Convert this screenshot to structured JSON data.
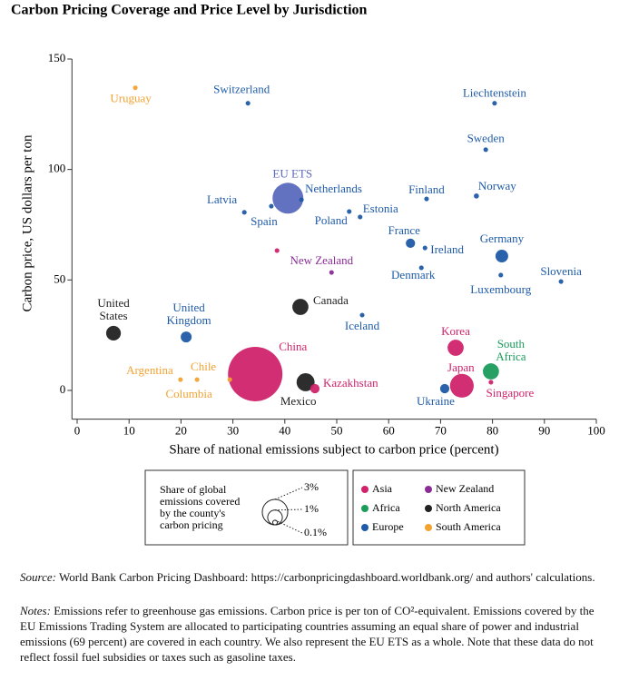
{
  "chart_data": {
    "type": "scatter",
    "title": "Carbon Pricing Coverage and Price Level by Jurisdiction",
    "x_label": "Share of national emissions subject to carbon price (percent)",
    "y_label": "Carbon price, US dollars per ton",
    "xlim": [
      -1,
      100
    ],
    "ylim": [
      -13,
      150
    ],
    "xticks": [
      0,
      10,
      20,
      30,
      40,
      50,
      60,
      70,
      80,
      90,
      100
    ],
    "yticks": [
      0,
      50,
      100,
      150
    ],
    "grid": false,
    "size_legend": {
      "title": [
        "Share of global",
        "emissions covered",
        "by the county's",
        "carbon pricing"
      ],
      "values": [
        {
          "value": 3,
          "label": "3%"
        },
        {
          "value": 1,
          "label": "1%"
        },
        {
          "value": 0.1,
          "label": "0.1%"
        }
      ]
    },
    "series": [
      {
        "name": "Asia",
        "color": "#d0236b",
        "x": [
          34.3,
          72.9,
          74.1,
          45.8,
          79.7,
          38.5
        ],
        "values": [
          7.4,
          19.3,
          2.1,
          0.8,
          3.7,
          63.3
        ],
        "sizes": [
          13.7,
          1.2,
          2.6,
          0.4,
          0.1,
          0.1
        ],
        "labels": [
          "China",
          "Korea",
          "Japan",
          "Kazakhstan",
          "Singapore",
          null
        ]
      },
      {
        "name": "New Zealand",
        "color": "#8a2c96",
        "x": [
          49
        ],
        "values": [
          53.4
        ],
        "sizes": [
          0.1
        ],
        "labels": [
          "New Zealand"
        ]
      },
      {
        "name": "Africa",
        "color": "#1b9c5b",
        "x": [
          79.7
        ],
        "values": [
          8.6
        ],
        "sizes": [
          1.2
        ],
        "labels": [
          [
            "South",
            "Africa"
          ]
        ]
      },
      {
        "name": "North America",
        "color": "#222222",
        "x": [
          7,
          43,
          44
        ],
        "values": [
          25.9,
          37.8,
          3.7
        ],
        "sizes": [
          1.0,
          1.2,
          1.5
        ],
        "labels": [
          [
            "United",
            "States"
          ],
          "Canada",
          "Mexico"
        ]
      },
      {
        "name": "Europe",
        "color": "#1f5ba8",
        "x": [
          32.9,
          80.4,
          78.7,
          32.2,
          37.4,
          43.2,
          52.4,
          54.5,
          67.3,
          76.9,
          64.2,
          67,
          81.8,
          66.3,
          81.6,
          93.2,
          54.9,
          21,
          70.8
        ],
        "values": [
          130,
          130,
          109,
          80.6,
          83.4,
          86.3,
          81,
          78.5,
          86.7,
          88,
          66.6,
          64.5,
          60.8,
          55.5,
          52.2,
          49.3,
          34.1,
          24.2,
          0.8
        ],
        "sizes": [
          0.1,
          0.1,
          0.1,
          0.1,
          0.1,
          0.1,
          0.1,
          0.1,
          0.1,
          0.12,
          0.4,
          0.1,
          0.75,
          0.1,
          0.1,
          0.1,
          0.1,
          0.55,
          0.4
        ],
        "labels": [
          "Switzerland",
          "Liechtenstein",
          "Sweden",
          "Latvia",
          "Spain",
          "Netherlands",
          "Poland",
          "Estonia",
          "Finland",
          "Norway",
          "France",
          "Ireland",
          "Germany",
          "Denmark",
          "Luxembourg",
          "Slovenia",
          "Iceland",
          [
            "United",
            "Kingdom"
          ],
          "Ukraine"
        ]
      },
      {
        "name": "South America",
        "color": "#f3a232",
        "x": [
          11.2,
          19.9,
          23.1,
          29.4
        ],
        "values": [
          137,
          4.9,
          4.9,
          4.9
        ],
        "sizes": [
          0.1,
          0.1,
          0.1,
          0.1
        ],
        "labels": [
          "Uruguay",
          "Argentina",
          "Chile",
          "Columbia"
        ]
      },
      {
        "color": "#5b69be",
        "x": [
          40.6
        ],
        "values": [
          87
        ],
        "sizes": [
          4.4
        ],
        "labels": [
          "EU ETS"
        ]
      }
    ]
  },
  "footer": {
    "source_label": "Source:",
    "source": "World Bank Carbon Pricing Dashboard: https://carbonpricingdashboard.worldbank.org/ and authors' calculations.",
    "notes_label": "Notes:",
    "notes": "Emissions refer to greenhouse gas emissions. Carbon price is per ton of CO²-equivalent. Emissions covered by the EU Emissions Trading System are allocated to participating countries assuming an equal share of power and industrial emissions (69 percent) are covered in each country. We also represent the EU ETS as a whole. Note that these data do not reflect fossil fuel subsidies or taxes such as gasoline taxes."
  }
}
